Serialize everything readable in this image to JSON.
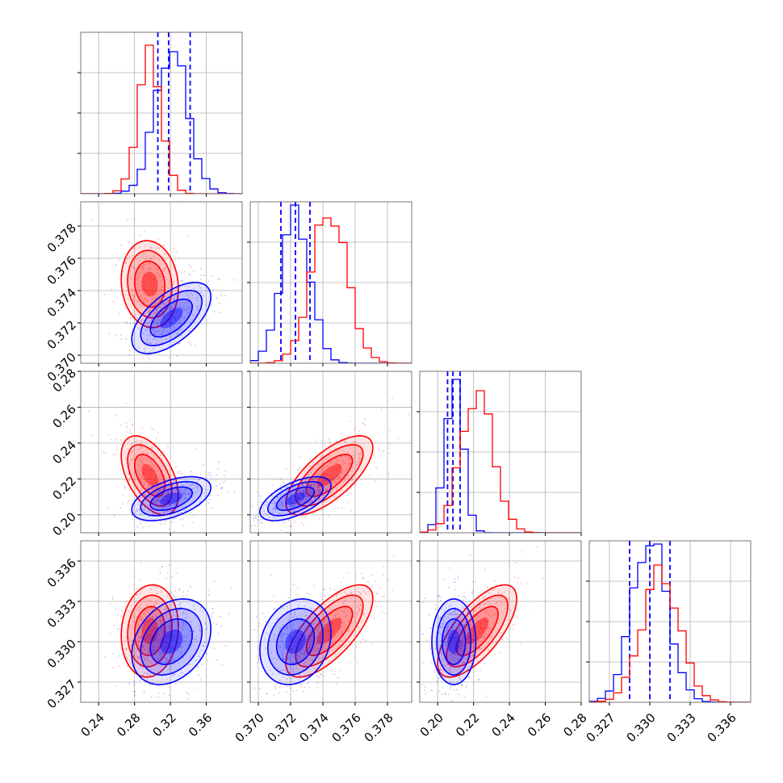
{
  "chart_data": {
    "type": "corner",
    "colors": {
      "series_a": "#0000ff",
      "series_b": "#ff0000",
      "grid": "#b0b0b0"
    },
    "grid": true,
    "parameters": [
      {
        "range": [
          0.22,
          0.4
        ],
        "ticks": [
          0.24,
          0.28,
          0.32,
          0.36
        ],
        "tick_labels": [
          "0.24",
          "0.28",
          "0.32",
          "0.36"
        ]
      },
      {
        "range": [
          0.3695,
          0.3795
        ],
        "ticks": [
          0.37,
          0.372,
          0.374,
          0.376,
          0.378
        ],
        "tick_labels": [
          "0.370",
          "0.372",
          "0.374",
          "0.376",
          "0.378"
        ]
      },
      {
        "range": [
          0.19,
          0.28
        ],
        "ticks": [
          0.2,
          0.22,
          0.24,
          0.26,
          0.28
        ],
        "tick_labels": [
          "0.20",
          "0.22",
          "0.24",
          "0.26",
          "0.28"
        ]
      },
      {
        "range": [
          0.3255,
          0.3375
        ],
        "ticks": [
          0.327,
          0.33,
          0.333,
          0.336
        ],
        "tick_labels": [
          "0.327",
          "0.330",
          "0.333",
          "0.336"
        ]
      }
    ],
    "series": [
      {
        "color": "#0000ff",
        "mean": [
          0.321,
          0.3723,
          0.209,
          0.33
        ],
        "sigma": [
          0.018,
          0.0009,
          0.005,
          0.0013
        ],
        "corr": [
          [
            0.0,
            0.6,
            0.5,
            0.3
          ],
          [
            0.6,
            0.0,
            0.6,
            0.2
          ],
          [
            0.5,
            0.6,
            0.0,
            0.0
          ],
          [
            0.3,
            0.2,
            0.0,
            0.0
          ]
        ],
        "quantiles": [
          [
            0.306,
            0.318,
            0.342
          ],
          [
            0.3714,
            0.3723,
            0.3732
          ],
          [
            0.2055,
            0.2085,
            0.2125
          ],
          [
            0.3285,
            0.33,
            0.3315
          ]
        ],
        "hist_peak": [
          0.88,
          0.98,
          0.95,
          0.98
        ]
      },
      {
        "color": "#ff0000",
        "mean": [
          0.297,
          0.3744,
          0.222,
          0.3308
        ],
        "sigma": [
          0.013,
          0.0011,
          0.009,
          0.0014
        ],
        "corr": [
          [
            0.0,
            -0.1,
            -0.5,
            0.1
          ],
          [
            -0.1,
            0.0,
            0.7,
            0.7
          ],
          [
            -0.5,
            0.7,
            0.0,
            0.7
          ],
          [
            0.1,
            0.7,
            0.7,
            0.0
          ]
        ],
        "quantiles": [],
        "hist_peak": [
          0.92,
          0.9,
          0.88,
          0.85
        ]
      }
    ]
  }
}
